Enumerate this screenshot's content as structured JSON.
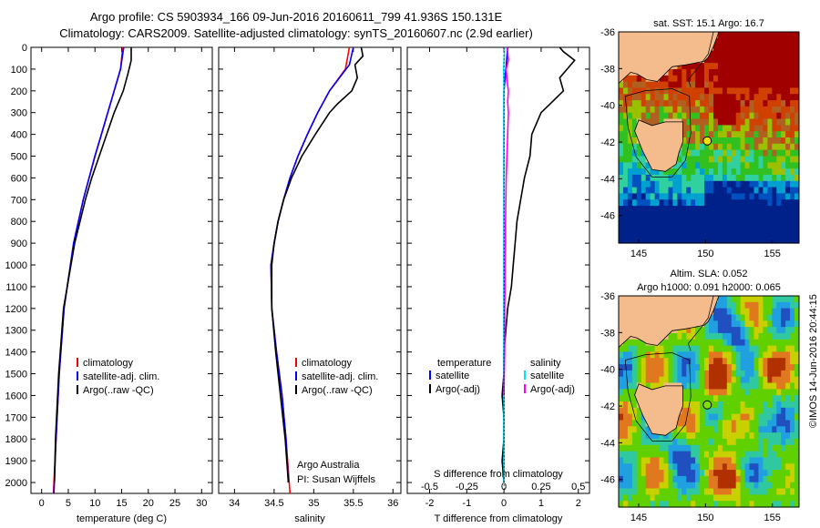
{
  "header": {
    "line1": "Argo profile: CS 5903934_166 09-Jun-2016 20160611_799 41.936S 150.131E",
    "line2": "Climatology: CARS2009. Satellite-adjusted climatology: synTS_20160607.nc (2.9d earlier)"
  },
  "colors": {
    "climatology": "#ff0000",
    "satellite": "#0000ff",
    "argo": "#000000",
    "s_satellite": "#00e5ee",
    "s_argo": "#ff00ff",
    "land": "#f4bb8c"
  },
  "chart_data": [
    {
      "type": "line",
      "panel": "temperature",
      "xlabel": "temperature (deg C)",
      "ylabel": "",
      "xlim": [
        -2,
        32
      ],
      "ylim": [
        2050,
        0
      ],
      "xticks": [
        0,
        5,
        10,
        15,
        20,
        25,
        30
      ],
      "yticks": [
        0,
        100,
        200,
        300,
        400,
        500,
        600,
        700,
        800,
        900,
        1000,
        1100,
        1200,
        1300,
        1400,
        1500,
        1600,
        1700,
        1800,
        1900,
        2000
      ],
      "legend": [
        "climatology",
        "satellite-adj. clim.",
        "Argo(..raw -QC)"
      ],
      "series": [
        {
          "name": "climatology",
          "depth": [
            0,
            100,
            200,
            300,
            400,
            500,
            700,
            900,
            1200,
            1500,
            1800,
            2050
          ],
          "values": [
            15.2,
            14.8,
            13.6,
            12.4,
            11.2,
            10.0,
            7.8,
            6.0,
            4.2,
            3.3,
            2.7,
            2.2
          ]
        },
        {
          "name": "satellite-adj. clim.",
          "depth": [
            0,
            100,
            200,
            300,
            400,
            500,
            700,
            900,
            1200,
            1500,
            1800,
            2050
          ],
          "values": [
            15.4,
            14.8,
            13.6,
            12.4,
            11.2,
            10.0,
            7.8,
            6.0,
            4.2,
            3.3,
            2.7,
            2.3
          ]
        },
        {
          "name": "Argo(..raw -QC)",
          "depth": [
            0,
            60,
            120,
            200,
            300,
            400,
            500,
            600,
            700,
            900,
            1200,
            1500,
            1800,
            2000
          ],
          "values": [
            16.8,
            16.8,
            16.2,
            15.3,
            13.6,
            12.2,
            10.8,
            9.4,
            8.2,
            6.2,
            4.1,
            3.2,
            2.6,
            2.4
          ]
        }
      ]
    },
    {
      "type": "line",
      "panel": "salinity",
      "xlabel": "salinity",
      "xlim": [
        33.8,
        36.1
      ],
      "ylim": [
        2050,
        0
      ],
      "xticks": [
        34,
        34.5,
        35,
        35.5,
        36
      ],
      "legend": [
        "climatology",
        "satellite-adj. clim.",
        "Argo(..raw -QC)"
      ],
      "annotation": [
        "Argo Australia",
        "PI: Susan Wijffels"
      ],
      "series": [
        {
          "name": "climatology",
          "depth": [
            0,
            100,
            200,
            300,
            400,
            500,
            600,
            700,
            800,
            900,
            1000,
            1200,
            1400,
            1600,
            1800,
            2050
          ],
          "values": [
            35.45,
            35.4,
            35.2,
            35.05,
            34.92,
            34.8,
            34.7,
            34.62,
            34.55,
            34.5,
            34.46,
            34.47,
            34.53,
            34.6,
            34.65,
            34.7
          ]
        },
        {
          "name": "satellite-adj. clim.",
          "depth": [
            0,
            80,
            200,
            300,
            400,
            500,
            600,
            700,
            800,
            900,
            1000,
            1200,
            1400,
            1600,
            1800,
            2000
          ],
          "values": [
            35.5,
            35.45,
            35.2,
            35.05,
            34.92,
            34.8,
            34.7,
            34.62,
            34.55,
            34.5,
            34.46,
            34.47,
            34.53,
            34.6,
            34.65,
            34.68
          ]
        },
        {
          "name": "Argo(..raw -QC)",
          "depth": [
            0,
            40,
            80,
            140,
            200,
            260,
            300,
            400,
            500,
            600,
            700,
            800,
            900,
            1000,
            1200,
            1400,
            1600,
            1800,
            2000
          ],
          "values": [
            35.6,
            35.62,
            35.52,
            35.55,
            35.48,
            35.3,
            35.2,
            35.02,
            34.85,
            34.72,
            34.62,
            34.55,
            34.5,
            34.47,
            34.47,
            34.52,
            34.58,
            34.64,
            34.68
          ]
        }
      ]
    },
    {
      "type": "line",
      "panel": "differences",
      "xlabel": "T difference from climatology",
      "top_label": "S difference from climatology",
      "xlim": [
        -2.6,
        2.3
      ],
      "ylim": [
        2050,
        0
      ],
      "xticks": [
        -2,
        -1,
        0,
        1,
        2
      ],
      "s_ticks": [
        "-0.5",
        "-0.25",
        "0",
        "0.25",
        "0.5"
      ],
      "legend_temperature": [
        "temperature",
        "satellite",
        "Argo(-adj)"
      ],
      "legend_salinity": [
        "salinity",
        "satellite",
        "Argo(-adj)"
      ],
      "series": [
        {
          "name": "satellite",
          "depth": [
            0,
            100,
            200,
            400,
            600,
            800,
            1000,
            1200,
            1500,
            1800,
            2000
          ],
          "values": [
            0.1,
            0.05,
            0.0,
            0.0,
            0.0,
            0.0,
            0.0,
            0.0,
            0.0,
            0.0,
            0.0
          ]
        },
        {
          "name": "Argo(-adj)",
          "depth": [
            0,
            20,
            60,
            100,
            140,
            200,
            250,
            300,
            400,
            500,
            600,
            700,
            800,
            900,
            1000,
            1100,
            1200,
            1300,
            1400,
            1500,
            1600,
            1700,
            1800,
            1900,
            2000
          ],
          "values": [
            1.5,
            1.6,
            1.9,
            1.7,
            1.5,
            1.6,
            1.3,
            1.0,
            0.75,
            0.7,
            0.55,
            0.45,
            0.35,
            0.3,
            0.25,
            0.2,
            0.1,
            0.05,
            0.0,
            0.0,
            -0.05,
            0.0,
            0.0,
            -0.05,
            0.0
          ]
        },
        {
          "name": "S satellite",
          "depth": [
            0,
            100,
            200,
            400,
            600,
            800,
            1000,
            1200,
            1500,
            1800,
            2000
          ],
          "values": [
            0.02,
            -0.01,
            0.0,
            0.0,
            0.0,
            0.0,
            0.0,
            0.0,
            0.0,
            0.0,
            0.0
          ]
        },
        {
          "name": "S Argo(-adj)",
          "depth": [
            0,
            20,
            60,
            100,
            150,
            200,
            250,
            300,
            400,
            500,
            600,
            700,
            800,
            900,
            1000,
            1100,
            1200,
            1300,
            1400,
            1500,
            1600
          ],
          "values": [
            0.08,
            0.1,
            0.12,
            0.06,
            0.08,
            0.12,
            0.1,
            0.12,
            0.1,
            0.08,
            0.06,
            0.05,
            0.04,
            0.04,
            0.03,
            0.03,
            0.02,
            0.02,
            0.02,
            0.01,
            0.0
          ]
        }
      ]
    },
    {
      "type": "heatmap",
      "panel": "sst_map",
      "title": "sat. SST: 15.1  Argo: 16.7",
      "xlim": [
        143.5,
        157
      ],
      "ylim": [
        -47.5,
        -36
      ],
      "xticks": [
        145,
        150,
        155
      ],
      "yticks": [
        -36,
        -38,
        -40,
        -42,
        -44,
        -46
      ],
      "profile_location": {
        "lon": 150.131,
        "lat": -41.936
      }
    },
    {
      "type": "heatmap",
      "panel": "sla_map",
      "title": [
        "Altim. SLA: 0.052",
        "Argo h1000: 0.091  h2000: 0.065"
      ],
      "xlim": [
        143.5,
        157
      ],
      "ylim": [
        -47.5,
        -36
      ],
      "xticks": [
        145,
        150,
        155
      ],
      "yticks": [
        -36,
        -38,
        -40,
        -42,
        -44,
        -46
      ],
      "profile_location": {
        "lon": 150.131,
        "lat": -41.936
      }
    }
  ],
  "footer": {
    "stamp": "©IMOS 14-Jun-2016 20:44:15"
  }
}
